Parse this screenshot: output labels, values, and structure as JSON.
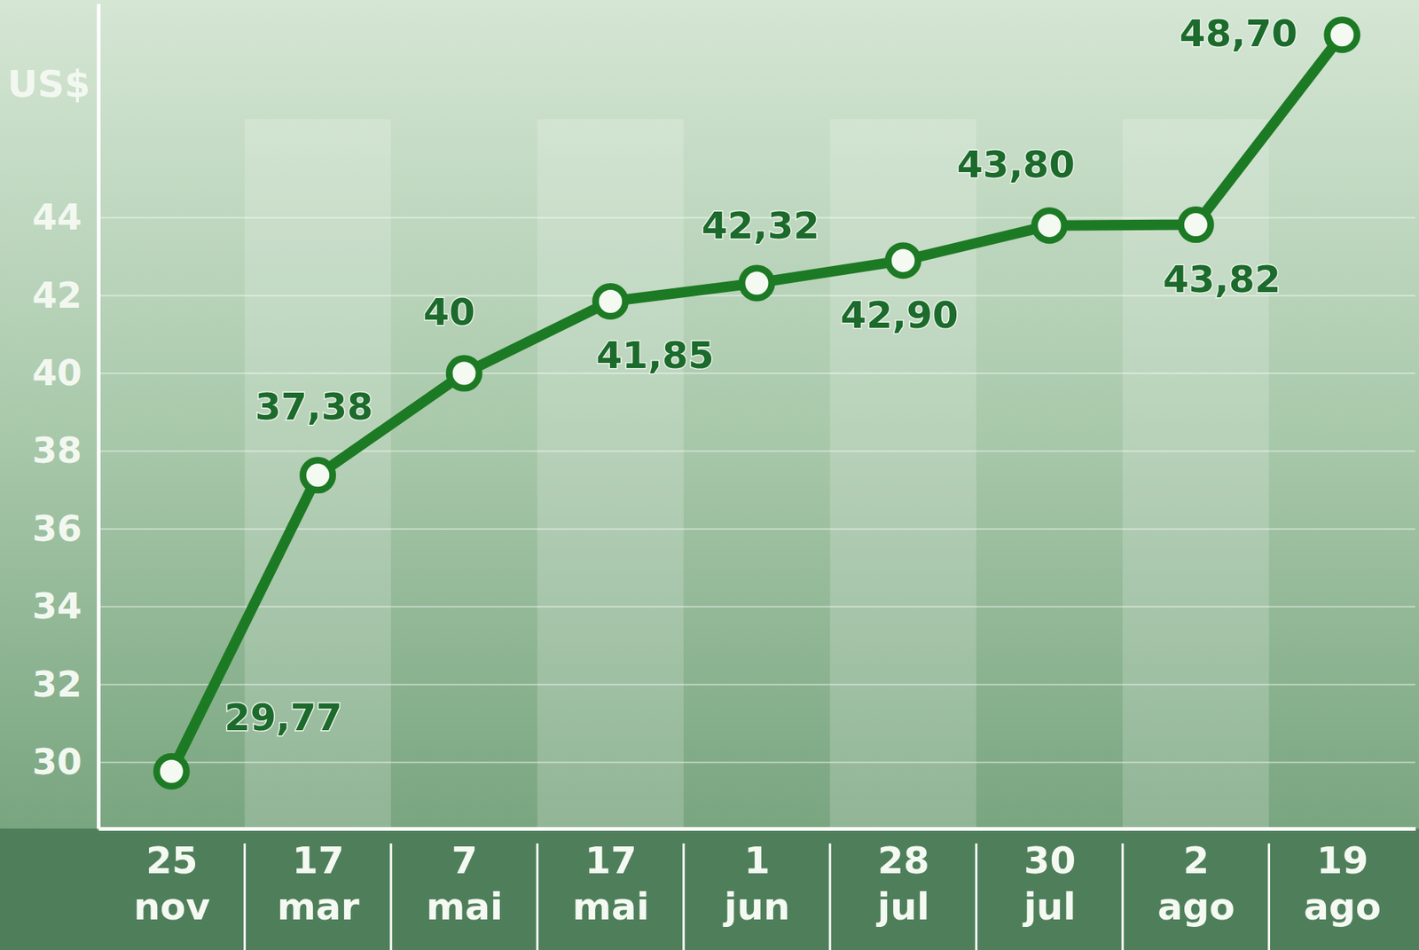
{
  "chart_data": {
    "type": "line",
    "y_label": "US$",
    "categories": [
      "25 nov",
      "17 mar",
      "7 mai",
      "17 mai",
      "1 jun",
      "28 jul",
      "30 jul",
      "2 ago",
      "19 ago"
    ],
    "values": [
      29.77,
      37.38,
      40,
      41.85,
      42.32,
      42.9,
      43.8,
      43.82,
      48.7
    ],
    "value_labels": [
      "29,77",
      "37,38",
      "40",
      "41,85",
      "42,32",
      "42,90",
      "43,80",
      "43,82",
      "48,70"
    ],
    "color": "#1d7a24",
    "marker": "circle",
    "ylim": [
      28.3,
      49.5
    ],
    "yticks": [
      30,
      32,
      34,
      36,
      38,
      40,
      42,
      44
    ],
    "grid": true,
    "data_labels": true
  }
}
